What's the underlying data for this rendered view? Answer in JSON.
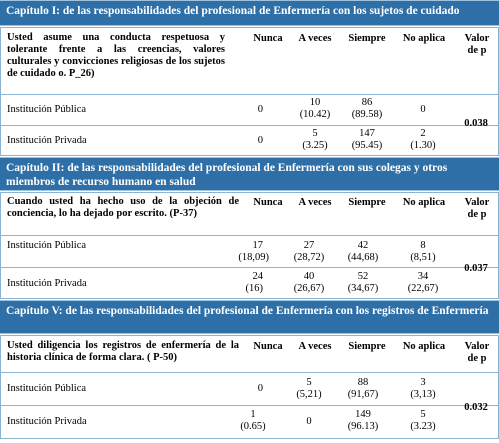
{
  "headers": {
    "never": "Nunca",
    "sometimes": "A veces",
    "always": "Siempre",
    "not_applicable": "No aplica",
    "p_value": "Valor de p"
  },
  "sections": [
    {
      "title": "Capítulo I: de las responsabilidades del profesional de Enfermería con los sujetos de cuidado",
      "question": "Usted asume una conducta respetuosa y tolerante frente a las creencias, valores culturales y convicciones religiosas de los sujetos de cuidado o. P_26)",
      "p_value": "0.038",
      "rows": [
        {
          "institution": "Institución Pública",
          "never": "0",
          "sometimes": "10",
          "sometimes_pct": "(10.42)",
          "always": "86",
          "always_pct": "(89.58)",
          "na": "0",
          "na_pct": ""
        },
        {
          "institution": "Institución Privada",
          "never": "0",
          "sometimes": "5",
          "sometimes_pct": "(3.25)",
          "always": "147",
          "always_pct": "(95.45)",
          "na": "2",
          "na_pct": "(1.30)"
        }
      ]
    },
    {
      "title": "Capítulo II: de las responsabilidades del profesional de Enfermería con sus colegas y otros miembros de recurso humano en salud",
      "question": "Cuando usted ha hecho uso de la objeción de conciencia, lo ha dejado por escrito. (P-37)",
      "p_value": "0.037",
      "rows": [
        {
          "institution": "Institución Pública",
          "never": "17",
          "never_pct": "(18,09)",
          "sometimes": "27",
          "sometimes_pct": "(28,72)",
          "always": "42",
          "always_pct": "(44,68)",
          "na": "8",
          "na_pct": "(8,51)"
        },
        {
          "institution": "Institución Privada",
          "never": "24",
          "never_pct": "(16)",
          "sometimes": "40",
          "sometimes_pct": "(26,67)",
          "always": "52",
          "always_pct": "(34,67)",
          "na": "34",
          "na_pct": "(22,67)"
        }
      ]
    },
    {
      "title": "Capítulo V: de las responsabilidades del profesional de Enfermería con los registros de Enfermería",
      "question": "Usted diligencia los registros de enfermería de la historia clínica de forma clara. ( P-50)",
      "p_value": "0.032",
      "rows": [
        {
          "institution": "Institución Pública",
          "never": "0",
          "sometimes": "5",
          "sometimes_pct": "(5,21)",
          "always": "88",
          "always_pct": "(91,67)",
          "na": "3",
          "na_pct": "(3,13)"
        },
        {
          "institution": "Institución Privada",
          "never": "1",
          "never_pct": "(0.65)",
          "sometimes": "0",
          "sometimes_pct": "",
          "always": "149",
          "always_pct": "(96.13)",
          "na": "5",
          "na_pct": "(3.23)"
        }
      ]
    }
  ]
}
